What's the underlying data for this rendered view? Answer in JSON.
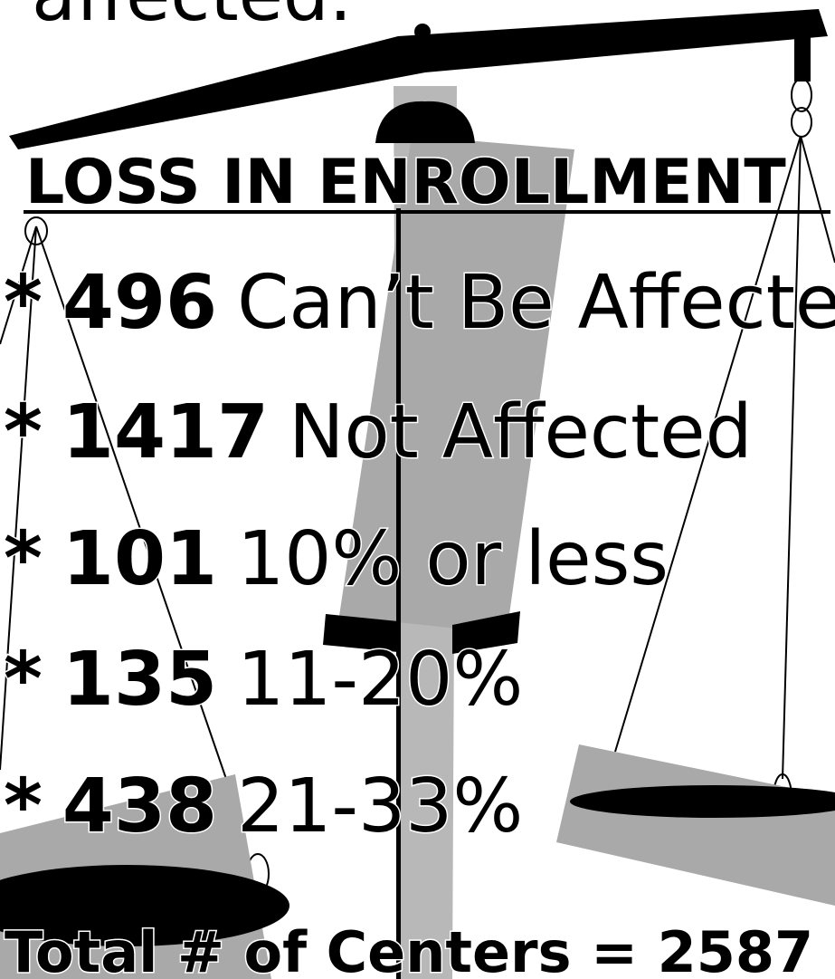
{
  "top_text": "affected.",
  "title": "LOSS IN ENROLLMENT",
  "items": [
    {
      "bullet": "*",
      "count": 496,
      "label": "Can’t Be Affected"
    },
    {
      "bullet": "*",
      "count": 1417,
      "label": "Not Affected"
    },
    {
      "bullet": "*",
      "count": 101,
      "label": "10% or less"
    },
    {
      "bullet": "*",
      "count": 135,
      "label": "11-20%"
    },
    {
      "bullet": "*",
      "count": 438,
      "label": "21-33%"
    }
  ],
  "total": {
    "label": "Total # of Centers =",
    "value": 2587
  }
}
